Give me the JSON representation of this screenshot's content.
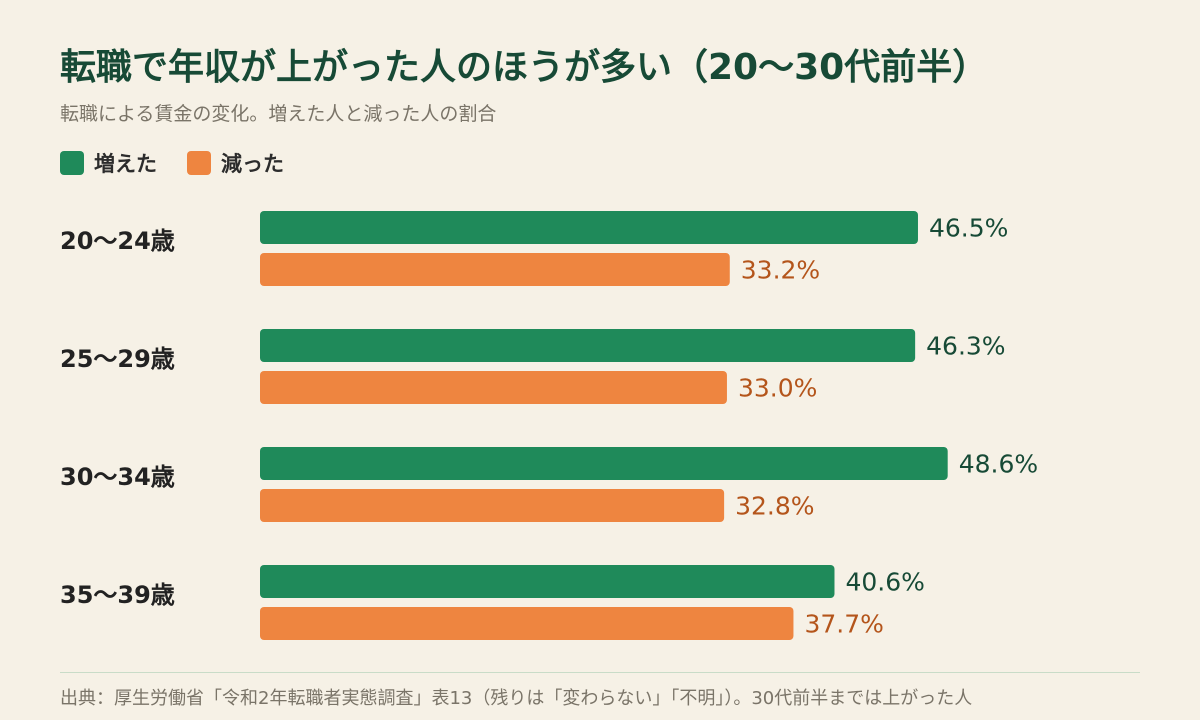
{
  "title": "転職で年収が上がった人のほうが多い（20〜30代前半）",
  "subtitle": "転職による賃金の変化。増えた人と減った人の割合",
  "legend": {
    "increased": "増えた",
    "decreased": "減った"
  },
  "colors": {
    "increased": "#1f8a5a",
    "decreased": "#ee8540",
    "increased_label": "#174a36",
    "decreased_label": "#b4551b",
    "category_label": "#222222"
  },
  "chart_data": {
    "type": "bar",
    "orientation": "horizontal",
    "categories": [
      "20〜24歳",
      "25〜29歳",
      "30〜34歳",
      "35〜39歳"
    ],
    "series": [
      {
        "name": "増えた",
        "values": [
          46.5,
          46.3,
          48.6,
          40.6
        ]
      },
      {
        "name": "減った",
        "values": [
          33.2,
          33.0,
          32.8,
          37.7
        ]
      }
    ],
    "value_labels": [
      [
        "46.5%",
        "46.3%",
        "48.6%",
        "40.6%"
      ],
      [
        "33.2%",
        "33.0%",
        "32.8%",
        "37.7%"
      ]
    ],
    "unit": "%",
    "xlim": [
      0,
      100
    ],
    "grid": false,
    "legend_position": "top-left"
  },
  "source": "出典：厚生労働省「令和2年転職者実態調査」表13（残りは「変わらない」「不明」）。30代前半までは上がった人"
}
